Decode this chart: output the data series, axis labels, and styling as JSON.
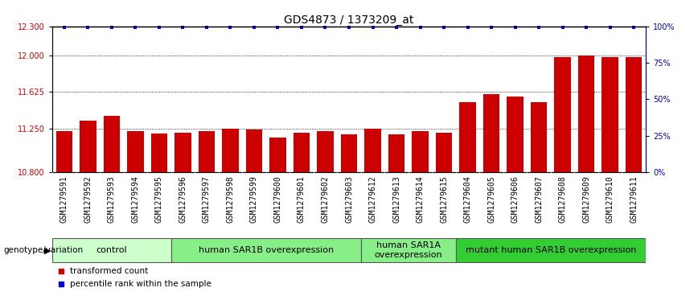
{
  "title": "GDS4873 / 1373209_at",
  "samples": [
    "GSM1279591",
    "GSM1279592",
    "GSM1279593",
    "GSM1279594",
    "GSM1279595",
    "GSM1279596",
    "GSM1279597",
    "GSM1279598",
    "GSM1279599",
    "GSM1279600",
    "GSM1279601",
    "GSM1279602",
    "GSM1279603",
    "GSM1279612",
    "GSM1279613",
    "GSM1279614",
    "GSM1279615",
    "GSM1279604",
    "GSM1279605",
    "GSM1279606",
    "GSM1279607",
    "GSM1279608",
    "GSM1279609",
    "GSM1279610",
    "GSM1279611"
  ],
  "bar_values": [
    11.22,
    11.33,
    11.38,
    11.22,
    11.2,
    11.21,
    11.22,
    11.25,
    11.24,
    11.16,
    11.21,
    11.22,
    11.19,
    11.25,
    11.19,
    11.22,
    11.21,
    11.52,
    11.6,
    11.58,
    11.52,
    11.98,
    12.0,
    11.98,
    11.98
  ],
  "percentile_values": [
    99,
    99,
    99,
    99,
    99,
    99,
    99,
    99,
    99,
    99,
    99,
    99,
    99,
    99,
    99,
    99,
    99,
    99,
    99,
    99,
    99,
    99,
    99,
    99,
    99
  ],
  "ylim_left": [
    10.8,
    12.3
  ],
  "yticks_left": [
    10.8,
    11.25,
    11.625,
    12.0,
    12.3
  ],
  "ylim_right": [
    0,
    100
  ],
  "yticks_right": [
    0,
    25,
    50,
    75,
    100
  ],
  "bar_color": "#cc0000",
  "dot_color": "#0000cc",
  "left_axis_color": "#cc0000",
  "right_axis_color": "#0000cc",
  "groups": [
    {
      "label": "control",
      "start": 0,
      "end": 4,
      "color": "#ccffcc"
    },
    {
      "label": "human SAR1B overexpression",
      "start": 5,
      "end": 12,
      "color": "#88ee88"
    },
    {
      "label": "human SAR1A\noverexpression",
      "start": 13,
      "end": 16,
      "color": "#88ee88"
    },
    {
      "label": "mutant human SAR1B overexpression",
      "start": 17,
      "end": 24,
      "color": "#33cc33"
    }
  ],
  "xlabel_group": "genotype/variation",
  "legend_items": [
    {
      "label": "transformed count",
      "color": "#cc0000"
    },
    {
      "label": "percentile rank within the sample",
      "color": "#0000cc"
    }
  ],
  "background_color": "#ffffff",
  "title_fontsize": 10,
  "tick_fontsize": 7,
  "group_label_fontsize": 8,
  "xtick_bg_color": "#d8d8d8"
}
